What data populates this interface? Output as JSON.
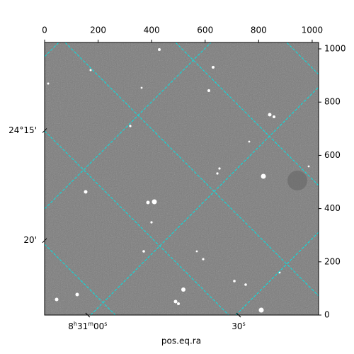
{
  "chart_data": {
    "type": "image",
    "xlabel": "pos.eq.ra",
    "xlim": [
      0,
      1024
    ],
    "ylim": [
      0,
      1024
    ],
    "xticks": [
      0,
      200,
      400,
      600,
      800,
      1000
    ],
    "yticks": [
      0,
      200,
      400,
      600,
      800,
      1000
    ],
    "ra_ticks": [
      {
        "value": 161,
        "label": "8h31m00s"
      },
      {
        "value": 725,
        "label": "30s"
      }
    ],
    "dec_ticks": [
      {
        "value": 693,
        "label": "24°15'"
      },
      {
        "value": 280,
        "label": "20'"
      }
    ]
  }
}
